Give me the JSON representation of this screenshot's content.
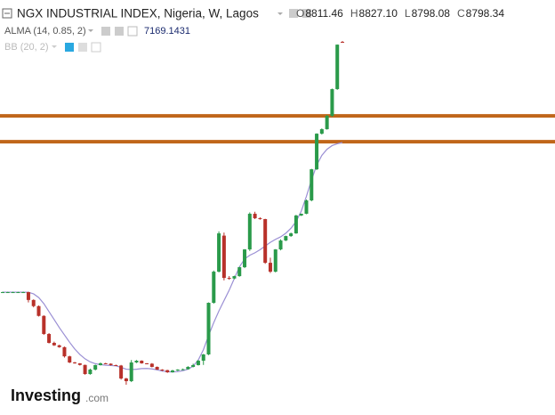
{
  "chart_data": {
    "type": "candlestick",
    "title": "NGX INDUSTRIAL INDEX, Nigeria, W, Lagos",
    "ohlc_letters": [
      "O",
      "H",
      "L",
      "C"
    ],
    "ohlc_labels": [
      "8811.46",
      "8827.10",
      "8798.08",
      "8798.34"
    ],
    "up_color": "#2a9a4a",
    "down_color": "#b8312a",
    "candles": [
      [
        4728,
        4735,
        4722,
        4728
      ],
      [
        4728,
        4734,
        4722,
        4728
      ],
      [
        4728,
        4735,
        4723,
        4728
      ],
      [
        4728,
        4734,
        4722,
        4728
      ],
      [
        4728,
        4736,
        4720,
        4728
      ],
      [
        4728,
        4735,
        4560,
        4600
      ],
      [
        4600,
        4610,
        4480,
        4500
      ],
      [
        4500,
        4510,
        4330,
        4340
      ],
      [
        4340,
        4350,
        4030,
        4045
      ],
      [
        4045,
        4060,
        3890,
        3900
      ],
      [
        3900,
        3920,
        3850,
        3860
      ],
      [
        3860,
        3870,
        3820,
        3830
      ],
      [
        3830,
        3840,
        3660,
        3680
      ],
      [
        3680,
        3690,
        3570,
        3580
      ],
      [
        3580,
        3590,
        3560,
        3566
      ],
      [
        3566,
        3570,
        3530,
        3540
      ],
      [
        3540,
        3545,
        3380,
        3391
      ],
      [
        3391,
        3480,
        3380,
        3464
      ],
      [
        3464,
        3545,
        3450,
        3537
      ],
      [
        3537,
        3580,
        3530,
        3566
      ],
      [
        3566,
        3575,
        3555,
        3560
      ],
      [
        3560,
        3565,
        3530,
        3537
      ],
      [
        3537,
        3545,
        3525,
        3530
      ],
      [
        3530,
        3540,
        3300,
        3319
      ],
      [
        3319,
        3330,
        3217,
        3275
      ],
      [
        3275,
        3620,
        3260,
        3580
      ],
      [
        3580,
        3620,
        3570,
        3609
      ],
      [
        3609,
        3615,
        3560,
        3566
      ],
      [
        3566,
        3570,
        3550,
        3560
      ],
      [
        3560,
        3570,
        3500,
        3508
      ],
      [
        3508,
        3515,
        3460,
        3464
      ],
      [
        3464,
        3470,
        3440,
        3455
      ],
      [
        3455,
        3460,
        3410,
        3420
      ],
      [
        3420,
        3460,
        3415,
        3449
      ],
      [
        3449,
        3470,
        3440,
        3464
      ],
      [
        3464,
        3480,
        3455,
        3470
      ],
      [
        3470,
        3520,
        3465,
        3508
      ],
      [
        3508,
        3560,
        3500,
        3537
      ],
      [
        3537,
        3620,
        3530,
        3609
      ],
      [
        3609,
        3720,
        3540,
        3711
      ],
      [
        3711,
        4560,
        3700,
        4554
      ],
      [
        4554,
        5080,
        4540,
        5062
      ],
      [
        5062,
        5720,
        5050,
        5687
      ],
      [
        5650,
        5700,
        4920,
        4960
      ],
      [
        4960,
        4990,
        4930,
        4950
      ],
      [
        4950,
        4995,
        4940,
        4989
      ],
      [
        4989,
        5140,
        4980,
        5135
      ],
      [
        5135,
        5430,
        5120,
        5425
      ],
      [
        5425,
        6030,
        5400,
        6007
      ],
      [
        6007,
        6040,
        5920,
        5934
      ],
      [
        5934,
        5950,
        5910,
        5920
      ],
      [
        5920,
        5925,
        5190,
        5207
      ],
      [
        5207,
        5290,
        5040,
        5062
      ],
      [
        5062,
        5430,
        5050,
        5425
      ],
      [
        5425,
        5590,
        5410,
        5571
      ],
      [
        5571,
        5650,
        5560,
        5643
      ],
      [
        5643,
        5700,
        5630,
        5687
      ],
      [
        5687,
        5990,
        5680,
        5978
      ],
      [
        5978,
        6010,
        5970,
        6007
      ],
      [
        6007,
        6240,
        6000,
        6225
      ],
      [
        6225,
        6740,
        6210,
        6733
      ],
      [
        6733,
        7320,
        6720,
        7314
      ],
      [
        7314,
        7400,
        7300,
        7387
      ],
      [
        7387,
        7620,
        7380,
        7605
      ],
      [
        7605,
        8050,
        7590,
        8041
      ],
      [
        8041,
        8770,
        8030,
        8767
      ],
      [
        8811.46,
        8827.1,
        8798.08,
        8798.34
      ]
    ],
    "indicators": [
      {
        "name": "ALMA (14, 0.85, 2)",
        "color": "#9a8fd4",
        "values": [
          4728,
          4728,
          4728,
          4728,
          4728,
          4725,
          4700,
          4640,
          4540,
          4410,
          4280,
          4150,
          4030,
          3910,
          3800,
          3710,
          3640,
          3590,
          3560,
          3545,
          3535,
          3530,
          3525,
          3500,
          3470,
          3465,
          3470,
          3480,
          3482,
          3475,
          3460,
          3440,
          3430,
          3425,
          3430,
          3445,
          3470,
          3520,
          3620,
          3790,
          4020,
          4230,
          4420,
          4590,
          4760,
          4950,
          5140,
          5270,
          5330,
          5370,
          5420,
          5480,
          5540,
          5590,
          5630,
          5690,
          5770,
          5880,
          6050,
          6290,
          6560,
          6800,
          6960,
          7060,
          7120,
          7150,
          7169.1431
        ]
      }
    ],
    "bb_label": "BB (20, 2)",
    "hlines": {
      "color": "#c0661a",
      "values": [
        7605,
        7183
      ]
    }
  },
  "logo": {
    "name": "Investing",
    "suffix": ".com"
  }
}
